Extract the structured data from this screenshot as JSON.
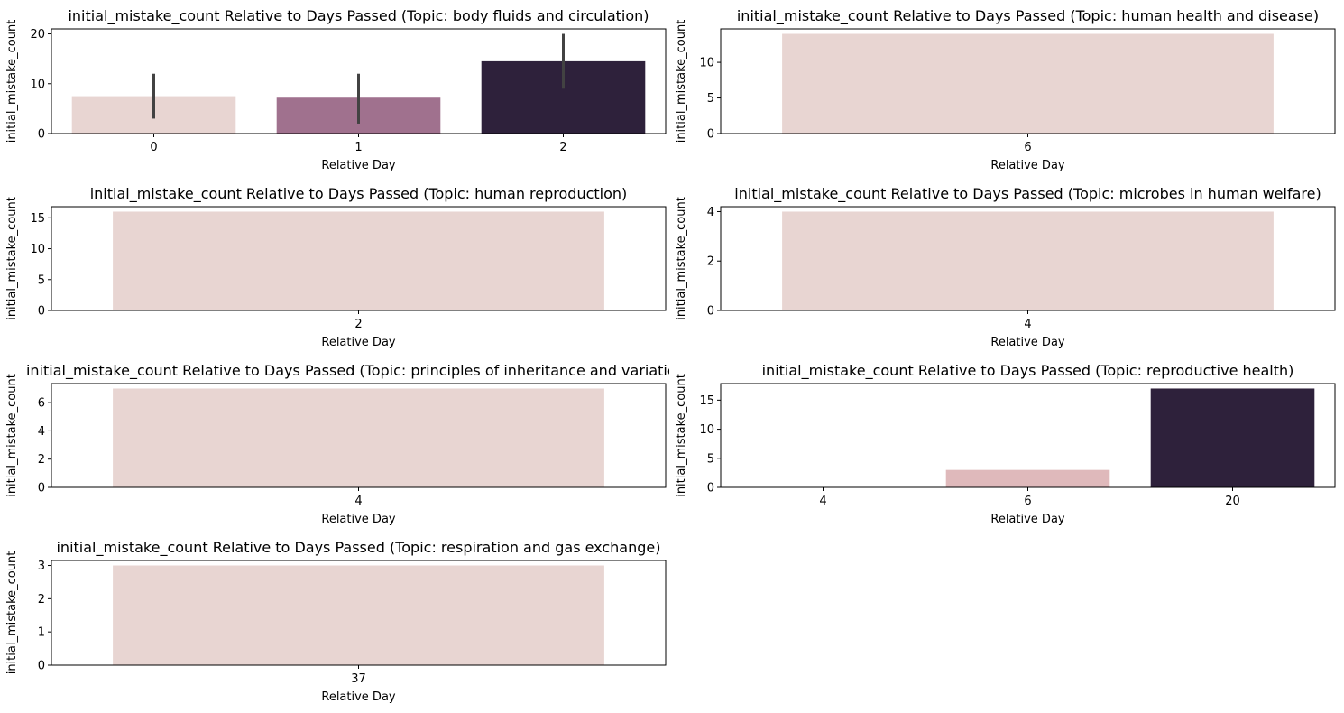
{
  "figure": {
    "background": "#ffffff"
  },
  "chart_data": [
    {
      "type": "bar",
      "title": "initial_mistake_count Relative to Days Passed (Topic: body fluids and circulation)",
      "xlabel": "Relative Day",
      "ylabel": "initial_mistake_count",
      "categories": [
        "0",
        "1",
        "2"
      ],
      "values": [
        7.5,
        7.2,
        14.5
      ],
      "error_bars": [
        [
          3,
          12
        ],
        [
          2,
          12
        ],
        [
          9,
          20
        ]
      ],
      "colors": [
        "#e8d5d2",
        "#a0718e",
        "#2e213b"
      ],
      "yticks": [
        0,
        10,
        20
      ],
      "ylim": [
        0,
        21
      ]
    },
    {
      "type": "bar",
      "title": "initial_mistake_count Relative to Days Passed (Topic: human health and disease)",
      "xlabel": "Relative Day",
      "ylabel": "initial_mistake_count",
      "categories": [
        "6"
      ],
      "values": [
        14
      ],
      "colors": [
        "#e8d5d2"
      ],
      "yticks": [
        0,
        5,
        10
      ],
      "ylim": [
        0,
        14.7
      ]
    },
    {
      "type": "bar",
      "title": "initial_mistake_count Relative to Days Passed (Topic: human reproduction)",
      "xlabel": "Relative Day",
      "ylabel": "initial_mistake_count",
      "categories": [
        "2"
      ],
      "values": [
        16
      ],
      "colors": [
        "#e8d5d2"
      ],
      "yticks": [
        0,
        5,
        10,
        15
      ],
      "ylim": [
        0,
        16.8
      ]
    },
    {
      "type": "bar",
      "title": "initial_mistake_count Relative to Days Passed (Topic: microbes in human welfare)",
      "xlabel": "Relative Day",
      "ylabel": "initial_mistake_count",
      "categories": [
        "4"
      ],
      "values": [
        4
      ],
      "colors": [
        "#e8d5d2"
      ],
      "yticks": [
        0,
        2,
        4
      ],
      "ylim": [
        0,
        4.2
      ]
    },
    {
      "type": "bar",
      "title": "initial_mistake_count Relative to Days Passed (Topic: principles of inheritance and variation)",
      "xlabel": "Relative Day",
      "ylabel": "initial_mistake_count",
      "categories": [
        "4"
      ],
      "values": [
        7
      ],
      "colors": [
        "#e8d5d2"
      ],
      "yticks": [
        0,
        2,
        4,
        6
      ],
      "ylim": [
        0,
        7.35
      ]
    },
    {
      "type": "bar",
      "title": "initial_mistake_count Relative to Days Passed (Topic: reproductive health)",
      "xlabel": "Relative Day",
      "ylabel": "initial_mistake_count",
      "categories": [
        "4",
        "6",
        "20"
      ],
      "values": [
        0,
        3,
        17
      ],
      "colors": [
        "#f0e2e0",
        "#dfb9bb",
        "#2e213b"
      ],
      "yticks": [
        0,
        5,
        10,
        15
      ],
      "ylim": [
        0,
        17.85
      ]
    },
    {
      "type": "bar",
      "title": "initial_mistake_count Relative to Days Passed (Topic: respiration and gas exchange)",
      "xlabel": "Relative Day",
      "ylabel": "initial_mistake_count",
      "categories": [
        "37"
      ],
      "values": [
        3
      ],
      "colors": [
        "#e8d5d2"
      ],
      "yticks": [
        0,
        1,
        2,
        3
      ],
      "ylim": [
        0,
        3.15
      ]
    }
  ]
}
